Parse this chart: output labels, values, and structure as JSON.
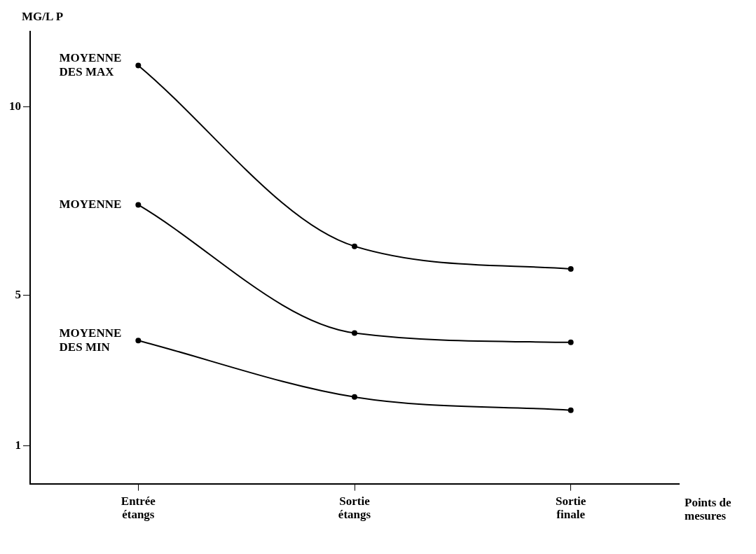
{
  "chart_data": {
    "type": "line",
    "xlabel": "Points de mesures",
    "ylabel": "MG/L P",
    "categories": [
      "Entrée étangs",
      "Sortie étangs",
      "Sortie finale"
    ],
    "series": [
      {
        "name": "MOYENNE DES MAX",
        "color": "#000000",
        "values": [
          11.1,
          6.3,
          5.7
        ]
      },
      {
        "name": "MOYENNE",
        "color": "#000000",
        "values": [
          7.4,
          4.0,
          3.75
        ]
      },
      {
        "name": "MOYENNE DES MIN",
        "color": "#000000",
        "values": [
          3.8,
          2.3,
          1.95
        ]
      }
    ],
    "ylim": [
      0,
      12
    ],
    "yticks": [
      1,
      5,
      10
    ],
    "grid": false,
    "legend": false,
    "marker": "circle",
    "line_style": "solid"
  }
}
